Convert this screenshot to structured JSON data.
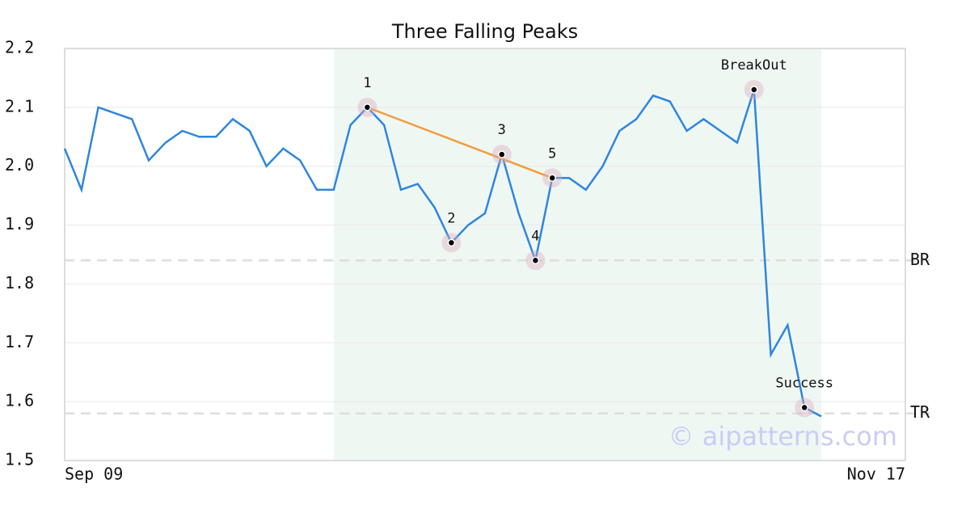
{
  "chart_data": {
    "type": "line",
    "title": "Three Falling Peaks",
    "x": [
      0,
      1,
      2,
      3,
      4,
      5,
      6,
      7,
      8,
      9,
      10,
      11,
      12,
      13,
      14,
      15,
      16,
      17,
      18,
      19,
      20,
      21,
      22,
      23,
      24,
      25,
      26,
      27,
      28,
      29,
      30,
      31,
      32,
      33,
      34,
      35,
      36,
      37,
      38,
      39,
      40,
      41,
      42,
      43,
      44,
      45
    ],
    "series": [
      {
        "color": "#2e86de",
        "values": [
          2.03,
          1.96,
          2.1,
          2.09,
          2.08,
          2.01,
          2.04,
          2.06,
          2.05,
          2.05,
          2.08,
          2.06,
          2.0,
          2.03,
          2.01,
          1.96,
          1.96,
          2.07,
          2.1,
          2.07,
          1.96,
          1.97,
          1.93,
          1.87,
          1.9,
          1.92,
          2.02,
          1.92,
          1.84,
          1.98,
          1.98,
          1.96,
          2.0,
          2.06,
          2.08,
          2.12,
          2.11,
          2.06,
          2.08,
          2.06,
          2.04,
          2.13,
          1.68,
          1.73,
          1.59,
          1.575
        ]
      }
    ],
    "xlim": [
      0,
      50
    ],
    "xticks": [
      {
        "value": 0,
        "label": "Sep 09"
      },
      {
        "value": 50,
        "label": "Nov 17"
      }
    ],
    "ylim": [
      1.5,
      2.2
    ],
    "yticks": [
      1.5,
      1.6,
      1.7,
      1.8,
      1.9,
      {
        "value": 2.0,
        "label": "2.0"
      },
      2.1,
      2.2
    ],
    "grid": true,
    "highlight_x": [
      16,
      45
    ],
    "annotations": [
      {
        "label": "1",
        "x": 18,
        "y": 2.1
      },
      {
        "label": "2",
        "x": 23,
        "y": 1.87
      },
      {
        "label": "3",
        "x": 26,
        "y": 2.02
      },
      {
        "label": "4",
        "x": 28,
        "y": 1.84
      },
      {
        "label": "5",
        "x": 29,
        "y": 1.98
      },
      {
        "label": "BreakOut",
        "x": 41,
        "y": 2.13
      },
      {
        "label": "Success",
        "x": 44,
        "y": 1.59
      }
    ],
    "trend_color": "#f39c3c",
    "levels": [
      {
        "label": "BR",
        "value": 1.84
      },
      {
        "label": "TR",
        "value": 1.58
      }
    ],
    "watermark": "© aipatterns.com"
  }
}
